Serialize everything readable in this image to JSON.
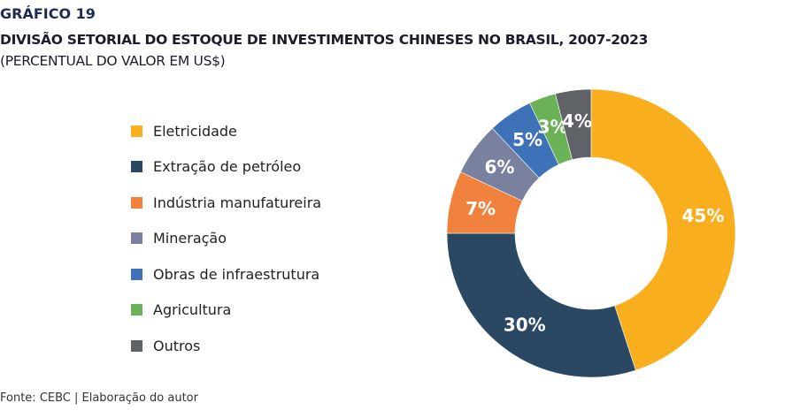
{
  "header": {
    "kicker": "GRÁFICO 19",
    "title": "DIVISÃO SETORIAL DO ESTOQUE DE INVESTIMENTOS CHINESES NO BRASIL, 2007-2023",
    "subtitle": "(PERCENTUAL DO VALOR EM US$)"
  },
  "footer": {
    "source": "Fonte: CEBC | Elaboração do autor"
  },
  "chart_data": {
    "type": "pie",
    "variant": "donut",
    "title": "DIVISÃO SETORIAL DO ESTOQUE DE INVESTIMENTOS CHINESES NO BRASIL, 2007-2023",
    "subtitle": "(PERCENTUAL DO VALOR EM US$)",
    "legend_position": "left",
    "slices": [
      {
        "label": "Eletricidade",
        "value": 45,
        "display": "45%",
        "color": "#f8ae1d"
      },
      {
        "label": "Extração de petróleo",
        "value": 30,
        "display": "30%",
        "color": "#2a4864"
      },
      {
        "label": "Indústria manufatureira",
        "value": 7,
        "display": "7%",
        "color": "#f0823e"
      },
      {
        "label": "Mineração",
        "value": 6,
        "display": "6%",
        "color": "#7a819e"
      },
      {
        "label": "Obras de infraestrutura",
        "value": 5,
        "display": "5%",
        "color": "#3d72b8"
      },
      {
        "label": "Agricultura",
        "value": 3,
        "display": "3%",
        "color": "#6ab157"
      },
      {
        "label": "Outros",
        "value": 4,
        "display": "4%",
        "color": "#5f6266"
      }
    ]
  }
}
